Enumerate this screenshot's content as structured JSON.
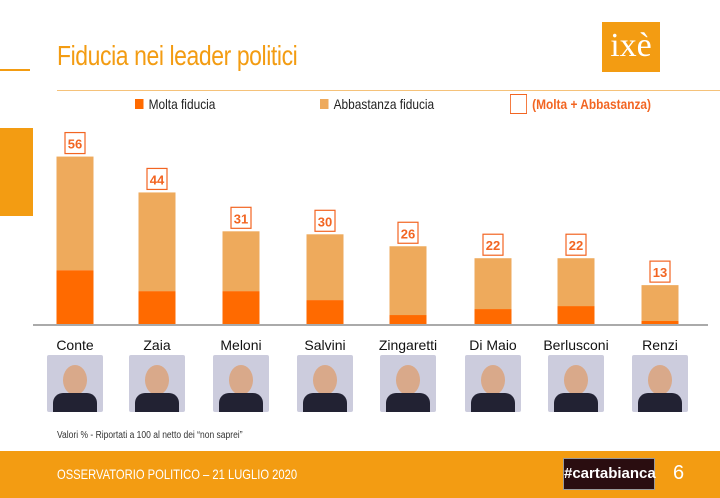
{
  "header": {
    "title": "Fiducia nei leader politici",
    "logo": "ixè"
  },
  "chart_data": {
    "type": "bar",
    "stacked": true,
    "title": "Fiducia nei leader politici",
    "categories": [
      "Conte",
      "Zaia",
      "Meloni",
      "Salvini",
      "Zingaretti",
      "Di Maio",
      "Berlusconi",
      "Renzi"
    ],
    "series": [
      {
        "name": "Molta fiducia",
        "color": "#ff6a00",
        "values": [
          18,
          11,
          11,
          8,
          3,
          5,
          6,
          1
        ]
      },
      {
        "name": "Abbastanza fiducia",
        "color": "#eeaa5c",
        "values": [
          38,
          33,
          20,
          22,
          23,
          17,
          16,
          12
        ]
      }
    ],
    "totals_name": "(Molta + Abbastanza)",
    "totals": [
      56,
      44,
      31,
      30,
      26,
      22,
      22,
      13
    ],
    "ylim": [
      0,
      60
    ],
    "grid": false,
    "legend": "top"
  },
  "note": "Valori % - Riportati a 100 al netto dei “non saprei”",
  "footer": {
    "text": "OSSERVATORIO POLITICO – 21 LUGLIO 2020",
    "brand": "#cartabianca",
    "page": "6"
  }
}
